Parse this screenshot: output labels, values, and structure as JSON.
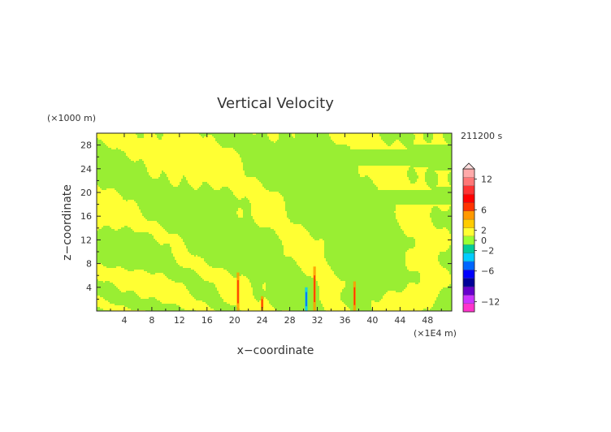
{
  "chart_data": {
    "type": "heatmap",
    "title": "Vertical Velocity",
    "xlabel": "x−coordinate",
    "ylabel": "z−coordinate",
    "x_unit": "(×1E4 m)",
    "y_unit": "(×1000 m)",
    "time_label": "211200 s",
    "xlim": [
      0,
      51.5
    ],
    "ylim": [
      0,
      30
    ],
    "x_ticks": [
      4,
      8,
      12,
      16,
      20,
      24,
      28,
      32,
      36,
      40,
      44,
      48
    ],
    "x_tick_labels": [
      "4",
      "8",
      "12",
      "16",
      "20",
      "24",
      "28",
      "32",
      "36",
      "40",
      "44",
      "48"
    ],
    "y_ticks": [
      4,
      8,
      12,
      16,
      20,
      24,
      28
    ],
    "y_tick_labels": [
      "4",
      "8",
      "12",
      "16",
      "20",
      "24",
      "28"
    ],
    "colorbar": {
      "levels": [
        -14,
        -12,
        -10,
        -8,
        -6,
        -4,
        -2,
        0,
        2,
        4,
        6,
        8,
        10,
        12,
        14
      ],
      "tick_values": [
        12,
        6,
        2,
        0,
        -2,
        -6,
        -12
      ],
      "tick_labels": [
        "12",
        "6",
        "2",
        "0",
        "−2",
        "−6",
        "−12"
      ],
      "colors": [
        "#ff33cc",
        "#cc33ff",
        "#6600cc",
        "#000099",
        "#0000ff",
        "#0066ff",
        "#00ccff",
        "#00cc99",
        "#99ff33",
        "#ffff33",
        "#ffcc00",
        "#ff9900",
        "#ff3300",
        "#ff0000",
        "#ff3333",
        "#ff7777",
        "#ffaaaa"
      ]
    },
    "features": [
      {
        "x": 20.5,
        "z_top": 6.5,
        "kind": "updraft"
      },
      {
        "x": 24,
        "z_top": 2.5,
        "kind": "updraft"
      },
      {
        "x": 31.6,
        "z_top": 7.5,
        "kind": "updraft"
      },
      {
        "x": 30.4,
        "z_top": 4,
        "kind": "downdraft"
      },
      {
        "x": 37.4,
        "z_top": 5,
        "kind": "updraft"
      }
    ]
  }
}
